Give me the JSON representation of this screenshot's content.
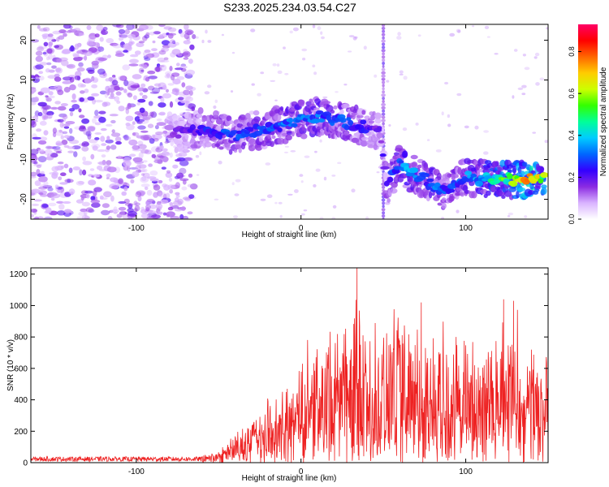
{
  "page": {
    "title": "S233.2025.234.03.54.C27"
  },
  "chart_data": [
    {
      "type": "heatmap",
      "title": "S233.2025.234.03.54.C27",
      "xlabel": "Height of straight line (km)",
      "ylabel": "Frequency (Hz)",
      "xlim": [
        -164,
        150
      ],
      "ylim": [
        -25,
        24
      ],
      "xticks": [
        -100,
        0,
        100
      ],
      "xtick_labels": [
        "-100",
        "0",
        "100"
      ],
      "yticks": [
        20,
        10,
        0,
        -10,
        -20
      ],
      "ytick_labels": [
        "20",
        "10",
        "0",
        "-10",
        "-20"
      ],
      "grid": false,
      "colorbar": {
        "label": "Normalized spectral amplitude",
        "range": [
          0,
          0.93
        ],
        "ticks": [
          0.0,
          0.2,
          0.4,
          0.6,
          0.8
        ],
        "tick_labels": [
          "0.0",
          "0.2",
          "0.4",
          "0.6",
          "0.8"
        ],
        "colormap": [
          "#ffffff",
          "#d9b3ff",
          "#8a2be2",
          "#3300ff",
          "#0066ff",
          "#00ccff",
          "#00ff99",
          "#33ff00",
          "#ccff00",
          "#ffcc00",
          "#ff6600",
          "#ff0000",
          "#ff0066"
        ]
      },
      "ridge": {
        "x": [
          -80,
          -70,
          -60,
          -50,
          -40,
          -30,
          -20,
          -10,
          0,
          10,
          20,
          30,
          40,
          48,
          52,
          55,
          60,
          65,
          70,
          75,
          80,
          85,
          90,
          95,
          100,
          110,
          120,
          130,
          140,
          148
        ],
        "y": [
          -3,
          -3,
          -2,
          -3,
          -4,
          -3,
          -2,
          -1,
          0,
          1,
          0,
          -1,
          -2,
          -3,
          -17,
          -14,
          -11,
          -13,
          -14,
          -15,
          -17,
          -18,
          -17,
          -16,
          -14,
          -15,
          -15,
          -15,
          -15,
          -14
        ],
        "amplitude": [
          0.15,
          0.2,
          0.25,
          0.3,
          0.3,
          0.3,
          0.3,
          0.35,
          0.35,
          0.35,
          0.3,
          0.3,
          0.25,
          0.2,
          0.25,
          0.3,
          0.35,
          0.4,
          0.35,
          0.3,
          0.35,
          0.3,
          0.3,
          0.3,
          0.35,
          0.4,
          0.55,
          0.65,
          0.8,
          0.6
        ]
      },
      "noise_region_x": [
        -164,
        -65
      ],
      "spike_x": 50
    },
    {
      "type": "line",
      "xlabel": "Height of straight line (km)",
      "ylabel": "SNR (10 * v/v)",
      "xlim": [
        -164,
        150
      ],
      "ylim": [
        0,
        1240
      ],
      "xticks": [
        -100,
        0,
        100
      ],
      "xtick_labels": [
        "-100",
        "0",
        "100"
      ],
      "yticks": [
        0,
        200,
        400,
        600,
        800,
        1000,
        1200
      ],
      "ytick_labels": [
        "0",
        "200",
        "400",
        "600",
        "800",
        "1000",
        "1200"
      ],
      "grid": false,
      "series": [
        {
          "color": "#ee2222",
          "envelope_x": [
            -164,
            -60,
            -50,
            -40,
            -30,
            -20,
            -10,
            0,
            10,
            20,
            30,
            35,
            40,
            50,
            60,
            70,
            80,
            90,
            100,
            110,
            120,
            130,
            140,
            150
          ],
          "envelope_y": [
            50,
            50,
            90,
            200,
            330,
            420,
            480,
            800,
            900,
            1000,
            1050,
            1240,
            950,
            1000,
            1010,
            1020,
            1000,
            1010,
            980,
            960,
            1030,
            1020,
            900,
            880
          ],
          "baseline_y": [
            20,
            20,
            30,
            60,
            90,
            120,
            150,
            250,
            300,
            330,
            350,
            300,
            350,
            300,
            250,
            330,
            300,
            280,
            300,
            320,
            300,
            320,
            350,
            400
          ],
          "peaks": [
            {
              "x": 34,
              "y": 1240
            },
            {
              "x": 73,
              "y": 1020
            },
            {
              "x": 123,
              "y": 1040
            },
            {
              "x": 129,
              "y": 1030
            }
          ]
        }
      ]
    }
  ]
}
